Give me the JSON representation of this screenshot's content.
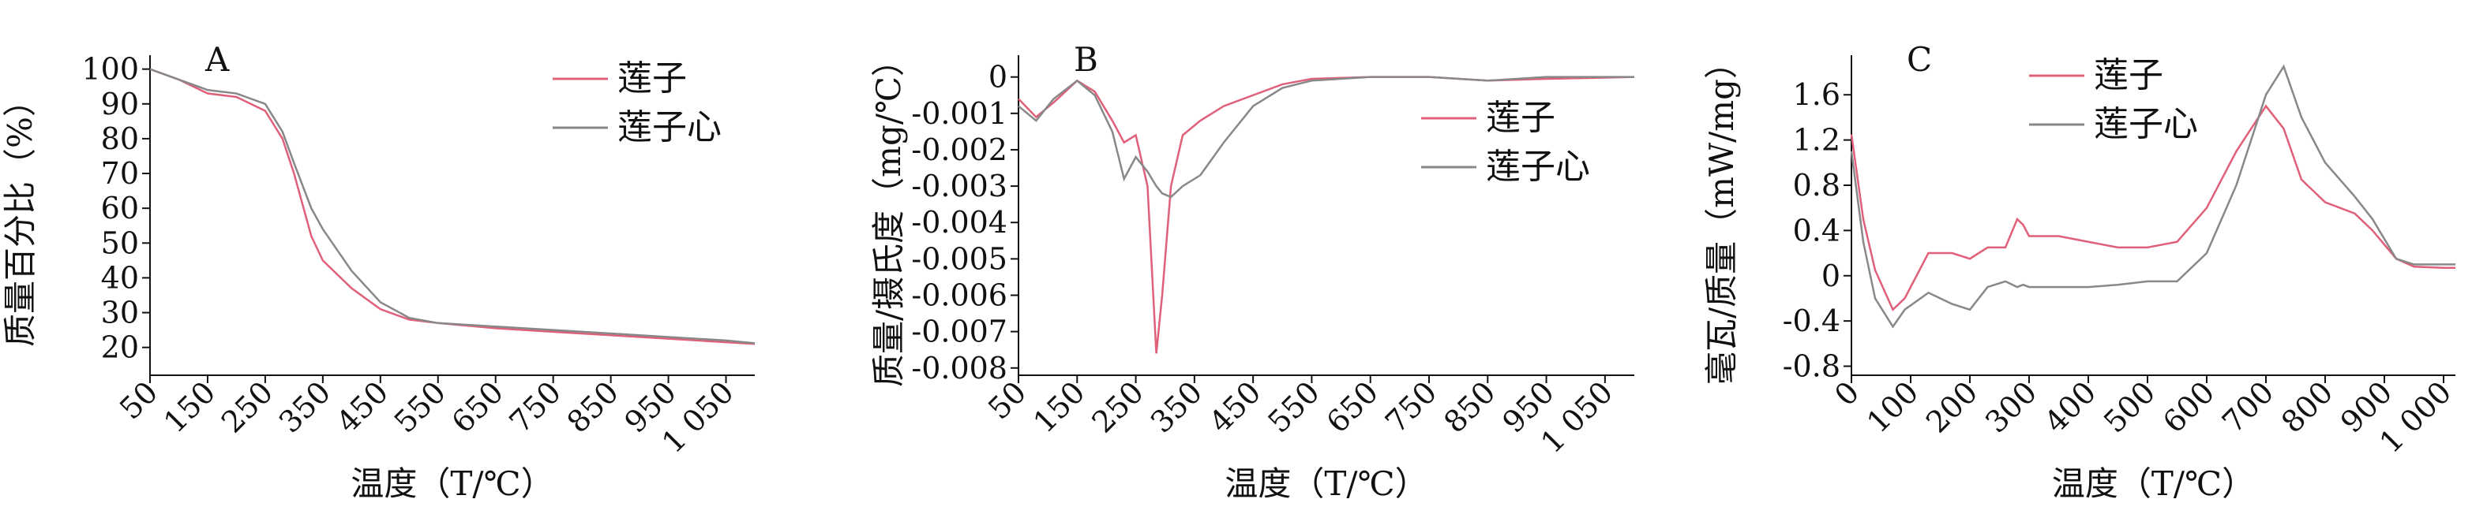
{
  "chart_data": [
    {
      "type": "line",
      "panel_label": "A",
      "ylabel": "质量百分比（%）",
      "xlabel": "温度（T/℃）",
      "x": [
        50,
        100,
        150,
        200,
        250,
        280,
        300,
        330,
        350,
        400,
        450,
        500,
        550,
        650,
        750,
        850,
        950,
        1050,
        1100
      ],
      "series": [
        {
          "name": "莲子",
          "color": "#e0607a",
          "values": [
            100,
            97,
            93,
            92,
            88,
            80,
            70,
            52,
            45,
            37,
            31,
            28,
            27,
            25.5,
            24.5,
            23.5,
            22.5,
            21.5,
            21
          ]
        },
        {
          "name": "莲子心",
          "color": "#888888",
          "values": [
            100,
            97,
            94,
            93,
            90,
            82,
            73,
            60,
            54,
            42,
            33,
            28.5,
            27,
            26,
            25,
            24,
            23,
            22,
            21.2
          ]
        }
      ],
      "xlim": [
        50,
        1100
      ],
      "ylim": [
        12,
        104
      ],
      "xticks": [
        50,
        150,
        250,
        350,
        450,
        550,
        650,
        750,
        850,
        950,
        {
          "value": 1050,
          "label": "1 050"
        }
      ],
      "yticks": [
        20,
        30,
        40,
        50,
        60,
        70,
        80,
        90,
        100
      ],
      "legend": "upper right"
    },
    {
      "type": "line",
      "panel_label": "B",
      "ylabel": "质量/摄氏度（mg/℃）",
      "xlabel": "温度（T/℃）",
      "x": [
        50,
        80,
        110,
        150,
        180,
        210,
        230,
        250,
        270,
        285,
        295,
        310,
        330,
        360,
        400,
        450,
        500,
        550,
        650,
        750,
        850,
        950,
        1100
      ],
      "series": [
        {
          "name": "莲子",
          "color": "#e0607a",
          "values": [
            -0.0006,
            -0.0011,
            -0.0007,
            -0.0001,
            -0.0004,
            -0.0012,
            -0.0018,
            -0.0016,
            -0.003,
            -0.0076,
            -0.006,
            -0.003,
            -0.0016,
            -0.0012,
            -0.0008,
            -0.0005,
            -0.0002,
            -5e-05,
            0,
            0,
            -0.0001,
            -5e-05,
            0
          ]
        },
        {
          "name": "莲子心",
          "color": "#888888",
          "values": [
            -0.0008,
            -0.0012,
            -0.0006,
            -0.0001,
            -0.0005,
            -0.0015,
            -0.0028,
            -0.0022,
            -0.0026,
            -0.003,
            -0.0032,
            -0.0033,
            -0.003,
            -0.0027,
            -0.0018,
            -0.0008,
            -0.0003,
            -0.0001,
            0,
            0,
            -0.0001,
            0,
            0
          ]
        }
      ],
      "xlim": [
        50,
        1100
      ],
      "ylim": [
        -0.0082,
        0.0006
      ],
      "xticks": [
        50,
        150,
        250,
        350,
        450,
        550,
        650,
        750,
        850,
        950,
        {
          "value": 1050,
          "label": "1 050"
        }
      ],
      "yticks": [
        0,
        -0.001,
        -0.002,
        -0.003,
        -0.004,
        -0.005,
        -0.006,
        -0.007,
        -0.008
      ],
      "legend": "right"
    },
    {
      "type": "line",
      "panel_label": "C",
      "ylabel": "毫瓦/质量（mW/mg）",
      "xlabel": "温度（T/℃）",
      "x": [
        0,
        20,
        40,
        70,
        90,
        130,
        170,
        200,
        230,
        260,
        280,
        290,
        300,
        350,
        400,
        450,
        500,
        550,
        600,
        650,
        700,
        730,
        760,
        800,
        850,
        880,
        920,
        950,
        1000,
        1020
      ],
      "series": [
        {
          "name": "莲子",
          "color": "#e0607a",
          "values": [
            1.25,
            0.5,
            0.05,
            -0.3,
            -0.2,
            0.2,
            0.2,
            0.15,
            0.25,
            0.25,
            0.5,
            0.45,
            0.35,
            0.35,
            0.3,
            0.25,
            0.25,
            0.3,
            0.6,
            1.1,
            1.5,
            1.3,
            0.85,
            0.65,
            0.55,
            0.4,
            0.15,
            0.08,
            0.07,
            0.07
          ]
        },
        {
          "name": "莲子心",
          "color": "#888888",
          "values": [
            1.1,
            0.3,
            -0.2,
            -0.45,
            -0.3,
            -0.15,
            -0.25,
            -0.3,
            -0.1,
            -0.05,
            -0.1,
            -0.08,
            -0.1,
            -0.1,
            -0.1,
            -0.08,
            -0.05,
            -0.05,
            0.2,
            0.8,
            1.6,
            1.85,
            1.4,
            1,
            0.7,
            0.5,
            0.15,
            0.1,
            0.1,
            0.1
          ]
        }
      ],
      "xlim": [
        0,
        1020
      ],
      "ylim": [
        -0.88,
        1.95
      ],
      "xticks": [
        0,
        100,
        200,
        300,
        400,
        500,
        600,
        700,
        800,
        900,
        {
          "value": 1000,
          "label": "1 000"
        }
      ],
      "yticks": [
        -0.8,
        -0.4,
        0,
        0.4,
        0.8,
        1.2,
        1.6
      ],
      "legend": "upper center"
    }
  ]
}
